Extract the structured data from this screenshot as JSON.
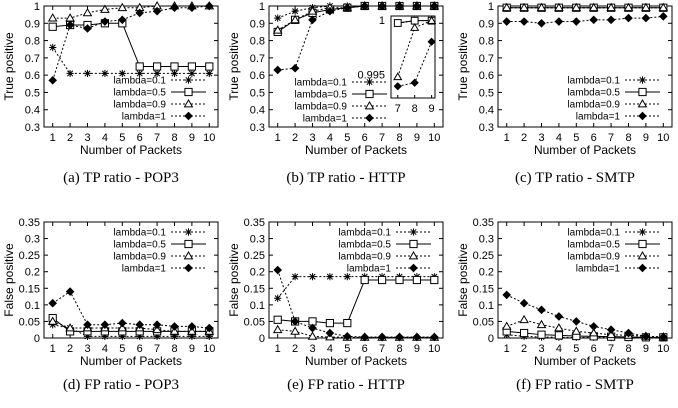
{
  "chart_data": [
    {
      "id": "a",
      "type": "line",
      "caption": "(a) TP ratio - POP3",
      "xlabel": "Number of Packets",
      "ylabel": "True positive",
      "x": [
        1,
        2,
        3,
        4,
        5,
        6,
        7,
        8,
        9,
        10
      ],
      "xticks": [
        "1",
        "2",
        "3",
        "4",
        "5",
        "6",
        "7",
        "8",
        "9",
        "10"
      ],
      "yticks": [
        "0.3",
        "0.4",
        "0.5",
        "0.6",
        "0.7",
        "0.8",
        "0.9",
        "1"
      ],
      "ylim": [
        0.3,
        1.0
      ],
      "legend_position": "bottom-right",
      "series": [
        {
          "name": "lambda=0.1",
          "marker": "star",
          "values": [
            0.76,
            0.61,
            0.61,
            0.61,
            0.61,
            0.61,
            0.61,
            0.61,
            0.61,
            0.61
          ]
        },
        {
          "name": "lambda=0.5",
          "marker": "square",
          "values": [
            0.88,
            0.89,
            0.89,
            0.9,
            0.9,
            0.65,
            0.65,
            0.65,
            0.65,
            0.65
          ]
        },
        {
          "name": "lambda=0.9",
          "marker": "triangle",
          "values": [
            0.93,
            0.93,
            0.96,
            0.98,
            0.99,
            0.99,
            1.0,
            1.0,
            1.0,
            1.0
          ]
        },
        {
          "name": "lambda=1",
          "marker": "diamond",
          "values": [
            0.57,
            0.89,
            0.87,
            0.91,
            0.92,
            0.96,
            0.97,
            0.99,
            0.99,
            1.0
          ]
        }
      ]
    },
    {
      "id": "b",
      "type": "line",
      "caption": "(b) TP ratio - HTTP",
      "xlabel": "Number of Packets",
      "ylabel": "True positive",
      "x": [
        1,
        2,
        3,
        4,
        5,
        6,
        7,
        8,
        9,
        10
      ],
      "xticks": [
        "1",
        "2",
        "3",
        "4",
        "5",
        "6",
        "7",
        "8",
        "9",
        "10"
      ],
      "yticks": [
        "0.3",
        "0.4",
        "0.5",
        "0.6",
        "0.7",
        "0.8",
        "0.9",
        "1"
      ],
      "ylim": [
        0.3,
        1.0
      ],
      "legend_position": "bottom-left",
      "series": [
        {
          "name": "lambda=0.1",
          "marker": "star",
          "values": [
            0.93,
            0.97,
            0.99,
            1.0,
            1.0,
            1.0,
            1.0,
            1.0,
            1.0,
            1.0
          ]
        },
        {
          "name": "lambda=0.5",
          "marker": "square",
          "values": [
            0.85,
            0.92,
            0.96,
            0.98,
            0.99,
            1.0,
            1.0,
            1.0,
            1.0,
            1.0
          ]
        },
        {
          "name": "lambda=0.9",
          "marker": "triangle",
          "values": [
            0.86,
            0.92,
            0.97,
            0.99,
            0.99,
            1.0,
            1.0,
            1.0,
            1.0,
            1.0
          ]
        },
        {
          "name": "lambda=1",
          "marker": "diamond",
          "values": [
            0.63,
            0.64,
            0.92,
            0.97,
            0.99,
            1.0,
            1.0,
            1.0,
            1.0,
            1.0
          ]
        }
      ],
      "inset": {
        "x": [
          7,
          8,
          9
        ],
        "xticks": [
          "7",
          "8",
          "9"
        ],
        "ytick_labels": [
          "1",
          "0.995"
        ],
        "ylim": [
          0.993,
          1.0
        ],
        "series": [
          {
            "marker": "star",
            "values": [
              0.9994,
              0.9996,
              0.9996
            ]
          },
          {
            "marker": "square",
            "values": [
              0.9994,
              0.9996,
              0.9996
            ]
          },
          {
            "marker": "triangle",
            "values": [
              0.9948,
              0.999,
              0.9996
            ]
          },
          {
            "marker": "diamond",
            "values": [
              0.994,
              0.9943,
              0.9978
            ]
          }
        ]
      }
    },
    {
      "id": "c",
      "type": "line",
      "caption": "(c) TP ratio - SMTP",
      "xlabel": "Number of Packets",
      "ylabel": "True positive",
      "x": [
        1,
        2,
        3,
        4,
        5,
        6,
        7,
        8,
        9,
        10
      ],
      "xticks": [
        "1",
        "2",
        "3",
        "4",
        "5",
        "6",
        "7",
        "8",
        "9",
        "10"
      ],
      "yticks": [
        "0.3",
        "0.4",
        "0.5",
        "0.6",
        "0.7",
        "0.8",
        "0.9",
        "1"
      ],
      "ylim": [
        0.3,
        1.0
      ],
      "legend_position": "bottom-right",
      "series": [
        {
          "name": "lambda=0.1",
          "marker": "star",
          "values": [
            0.99,
            0.99,
            0.99,
            0.99,
            0.99,
            0.99,
            0.99,
            0.99,
            0.99,
            0.99
          ]
        },
        {
          "name": "lambda=0.5",
          "marker": "square",
          "values": [
            0.99,
            0.99,
            0.99,
            0.99,
            0.99,
            0.99,
            0.99,
            0.99,
            0.99,
            0.99
          ]
        },
        {
          "name": "lambda=0.9",
          "marker": "triangle",
          "values": [
            0.99,
            0.99,
            0.99,
            0.99,
            0.99,
            0.99,
            0.99,
            0.99,
            0.99,
            0.99
          ]
        },
        {
          "name": "lambda=1",
          "marker": "diamond",
          "values": [
            0.91,
            0.91,
            0.9,
            0.91,
            0.91,
            0.92,
            0.92,
            0.93,
            0.93,
            0.94
          ]
        }
      ]
    },
    {
      "id": "d",
      "type": "line",
      "caption": "(d) FP ratio - POP3",
      "xlabel": "Number of Packets",
      "ylabel": "False positive",
      "x": [
        1,
        2,
        3,
        4,
        5,
        6,
        7,
        8,
        9,
        10
      ],
      "xticks": [
        "1",
        "2",
        "3",
        "4",
        "5",
        "6",
        "7",
        "8",
        "9",
        "10"
      ],
      "yticks": [
        "0",
        "0.05",
        "0.1",
        "0.15",
        "0.2",
        "0.25",
        "0.3",
        "0.35"
      ],
      "ylim": [
        0,
        0.35
      ],
      "legend_position": "top-right",
      "series": [
        {
          "name": "lambda=0.1",
          "marker": "star",
          "values": [
            0.04,
            0.03,
            0.005,
            0.005,
            0.005,
            0.005,
            0.005,
            0.005,
            0.005,
            0.005
          ]
        },
        {
          "name": "lambda=0.5",
          "marker": "square",
          "values": [
            0.06,
            0.02,
            0.02,
            0.02,
            0.02,
            0.02,
            0.02,
            0.02,
            0.02,
            0.02
          ]
        },
        {
          "name": "lambda=0.9",
          "marker": "triangle",
          "values": [
            0.05,
            0.03,
            0.03,
            0.03,
            0.03,
            0.03,
            0.025,
            0.02,
            0.02,
            0.02
          ]
        },
        {
          "name": "lambda=1",
          "marker": "diamond",
          "values": [
            0.105,
            0.14,
            0.04,
            0.04,
            0.045,
            0.04,
            0.04,
            0.035,
            0.035,
            0.03
          ]
        }
      ]
    },
    {
      "id": "e",
      "type": "line",
      "caption": "(e) FP ratio - HTTP",
      "xlabel": "Number of Packets",
      "ylabel": "False positive",
      "x": [
        1,
        2,
        3,
        4,
        5,
        6,
        7,
        8,
        9,
        10
      ],
      "xticks": [
        "1",
        "2",
        "3",
        "4",
        "5",
        "6",
        "7",
        "8",
        "9",
        "10"
      ],
      "yticks": [
        "0",
        "0.05",
        "0.1",
        "0.15",
        "0.2",
        "0.25",
        "0.3",
        "0.35"
      ],
      "ylim": [
        0,
        0.35
      ],
      "legend_position": "top-right",
      "series": [
        {
          "name": "lambda=0.1",
          "marker": "star",
          "values": [
            0.12,
            0.185,
            0.185,
            0.185,
            0.185,
            0.185,
            0.185,
            0.185,
            0.185,
            0.185
          ]
        },
        {
          "name": "lambda=0.5",
          "marker": "square",
          "values": [
            0.055,
            0.05,
            0.05,
            0.045,
            0.045,
            0.175,
            0.175,
            0.175,
            0.175,
            0.175
          ]
        },
        {
          "name": "lambda=0.9",
          "marker": "triangle",
          "values": [
            0.025,
            0.02,
            0.005,
            0.003,
            0.002,
            0.002,
            0.002,
            0.002,
            0.002,
            0.002
          ]
        },
        {
          "name": "lambda=1",
          "marker": "diamond",
          "values": [
            0.205,
            0.05,
            0.03,
            0.015,
            0.005,
            0.003,
            0.003,
            0.003,
            0.003,
            0.003
          ]
        }
      ]
    },
    {
      "id": "f",
      "type": "line",
      "caption": "(f) FP ratio - SMTP",
      "xlabel": "Number of Packets",
      "ylabel": "False positive",
      "x": [
        1,
        2,
        3,
        4,
        5,
        6,
        7,
        8,
        9,
        10
      ],
      "xticks": [
        "1",
        "2",
        "3",
        "4",
        "5",
        "6",
        "7",
        "8",
        "9",
        "10"
      ],
      "yticks": [
        "0",
        "0.05",
        "0.1",
        "0.15",
        "0.2",
        "0.25",
        "0.3",
        "0.35"
      ],
      "ylim": [
        0,
        0.35
      ],
      "legend_position": "top-right",
      "series": [
        {
          "name": "lambda=0.1",
          "marker": "star",
          "values": [
            0.01,
            0.005,
            0.003,
            0.002,
            0.002,
            0.002,
            0.001,
            0.001,
            0.001,
            0.001
          ]
        },
        {
          "name": "lambda=0.5",
          "marker": "square",
          "values": [
            0.02,
            0.015,
            0.01,
            0.008,
            0.006,
            0.005,
            0.004,
            0.003,
            0.002,
            0.002
          ]
        },
        {
          "name": "lambda=0.9",
          "marker": "triangle",
          "values": [
            0.035,
            0.055,
            0.04,
            0.03,
            0.02,
            0.015,
            0.01,
            0.008,
            0.005,
            0.003
          ]
        },
        {
          "name": "lambda=1",
          "marker": "diamond",
          "values": [
            0.13,
            0.105,
            0.085,
            0.065,
            0.05,
            0.035,
            0.025,
            0.015,
            0.005,
            0.003
          ]
        }
      ]
    }
  ]
}
